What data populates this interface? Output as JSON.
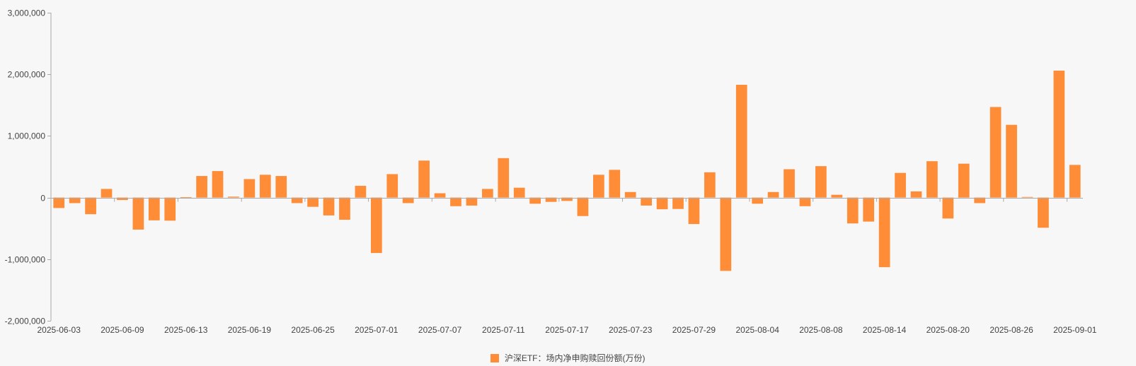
{
  "chart_data": {
    "type": "bar",
    "title": "",
    "xlabel": "",
    "ylabel": "",
    "ylim": [
      -2000000,
      3000000
    ],
    "y_ticks": [
      3000000,
      2000000,
      1000000,
      0,
      -1000000,
      -2000000
    ],
    "y_tick_labels": [
      "3,000,000",
      "2,000,000",
      "1,000,000",
      "0",
      "-1,000,000",
      "-2,000,000"
    ],
    "x_tick_labels": [
      "2025-06-03",
      "2025-06-09",
      "2025-06-13",
      "2025-06-19",
      "2025-06-25",
      "2025-07-01",
      "2025-07-07",
      "2025-07-11",
      "2025-07-17",
      "2025-07-23",
      "2025-07-29",
      "2025-08-04",
      "2025-08-08",
      "2025-08-14",
      "2025-08-20",
      "2025-08-26",
      "2025-09-01"
    ],
    "categories": [
      "2025-06-03",
      "2025-06-04",
      "2025-06-05",
      "2025-06-06",
      "2025-06-09",
      "2025-06-10",
      "2025-06-11",
      "2025-06-12",
      "2025-06-13",
      "2025-06-16",
      "2025-06-17",
      "2025-06-18",
      "2025-06-19",
      "2025-06-20",
      "2025-06-23",
      "2025-06-24",
      "2025-06-25",
      "2025-06-26",
      "2025-06-27",
      "2025-06-30",
      "2025-07-01",
      "2025-07-02",
      "2025-07-03",
      "2025-07-04",
      "2025-07-07",
      "2025-07-08",
      "2025-07-09",
      "2025-07-10",
      "2025-07-11",
      "2025-07-14",
      "2025-07-15",
      "2025-07-16",
      "2025-07-17",
      "2025-07-18",
      "2025-07-21",
      "2025-07-22",
      "2025-07-23",
      "2025-07-24",
      "2025-07-25",
      "2025-07-28",
      "2025-07-29",
      "2025-07-30",
      "2025-07-31",
      "2025-08-01",
      "2025-08-04",
      "2025-08-05",
      "2025-08-06",
      "2025-08-07",
      "2025-08-08",
      "2025-08-11",
      "2025-08-12",
      "2025-08-13",
      "2025-08-14",
      "2025-08-15",
      "2025-08-18",
      "2025-08-19",
      "2025-08-20",
      "2025-08-21",
      "2025-08-22",
      "2025-08-25",
      "2025-08-26",
      "2025-08-27",
      "2025-08-28",
      "2025-08-29",
      "2025-09-01"
    ],
    "series": [
      {
        "name": "沪深ETF：场内净申购赎回份额(万份)",
        "color": "#ff8c37",
        "values": [
          -170000,
          -90000,
          -270000,
          140000,
          -40000,
          -520000,
          -370000,
          -375000,
          5000,
          350000,
          430000,
          15000,
          300000,
          370000,
          350000,
          -90000,
          -150000,
          -290000,
          -360000,
          190000,
          -900000,
          380000,
          -90000,
          600000,
          70000,
          -140000,
          -130000,
          140000,
          640000,
          160000,
          -100000,
          -70000,
          -55000,
          -300000,
          370000,
          450000,
          90000,
          -130000,
          -190000,
          -185000,
          -430000,
          410000,
          -1190000,
          1830000,
          -100000,
          90000,
          460000,
          -140000,
          510000,
          45000,
          -420000,
          -390000,
          -1130000,
          400000,
          100000,
          590000,
          -340000,
          550000,
          -90000,
          1470000,
          1180000,
          10000,
          -490000,
          2060000,
          530000
        ]
      }
    ],
    "legend": {
      "position": "bottom-center",
      "label": "沪深ETF：场内净申购赎回份额(万份)",
      "color": "#ff8c37"
    },
    "axis_color": "#aaaaaa",
    "grid": false
  }
}
